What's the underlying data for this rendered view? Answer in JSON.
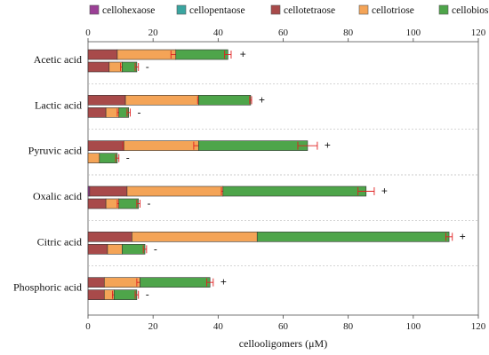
{
  "chart_data": {
    "type": "bar",
    "orientation": "horizontal",
    "stacked": true,
    "xlabel": "cellooligomers (μM)",
    "xlim": [
      0,
      120
    ],
    "x_ticks": [
      0,
      20,
      40,
      60,
      80,
      100,
      120
    ],
    "x_axis_top": true,
    "grid": "dotted horizontal separators between groups",
    "legend_position": "top",
    "series": [
      {
        "name": "cellohexaose",
        "color": "#9b3f96"
      },
      {
        "name": "cellopentaose",
        "color": "#3aa5a0"
      },
      {
        "name": "cellotetraose",
        "color": "#a84a4a"
      },
      {
        "name": "cellotriose",
        "color": "#f4a457"
      },
      {
        "name": "cellobiose",
        "color": "#4ea54a"
      }
    ],
    "categories": [
      {
        "name": "Acetic acid",
        "bars": [
          {
            "sign": "+",
            "segments": [
              0,
              0,
              9,
              18,
              16
            ],
            "errors": [
              0,
              0,
              0,
              1.5,
              1
            ]
          },
          {
            "sign": "-",
            "segments": [
              0,
              0,
              6.5,
              4,
              4.5
            ],
            "errors": [
              0,
              0,
              0,
              0.5,
              0.5
            ]
          }
        ]
      },
      {
        "name": "Lactic acid",
        "bars": [
          {
            "sign": "+",
            "segments": [
              0,
              0,
              11.5,
              22.5,
              16
            ],
            "errors": [
              0,
              0,
              0,
              0.3,
              0.3
            ]
          },
          {
            "sign": "-",
            "segments": [
              0,
              0,
              5.5,
              4,
              3
            ],
            "errors": [
              0,
              0,
              0,
              0.5,
              0.5
            ]
          }
        ]
      },
      {
        "name": "Pyruvic acid",
        "bars": [
          {
            "sign": "+",
            "segments": [
              0,
              0,
              11,
              23,
              33.5
            ],
            "errors": [
              0,
              0,
              0.3,
              1.5,
              3
            ]
          },
          {
            "sign": "-",
            "segments": [
              0,
              0,
              0,
              3.5,
              5.5
            ],
            "errors": [
              0,
              0,
              0,
              0,
              0.5
            ]
          }
        ]
      },
      {
        "name": "Oxalic acid",
        "bars": [
          {
            "sign": "+",
            "segments": [
              0.5,
              0,
              11.5,
              29.5,
              44
            ],
            "errors": [
              0,
              0,
              0,
              0.5,
              2.5
            ]
          },
          {
            "sign": "-",
            "segments": [
              0,
              0,
              5.5,
              4,
              6
            ],
            "errors": [
              0,
              0,
              0,
              0.5,
              0.5
            ]
          }
        ]
      },
      {
        "name": "Citric acid",
        "bars": [
          {
            "sign": "+",
            "segments": [
              0,
              0,
              13.5,
              38.5,
              59
            ],
            "errors": [
              0,
              0,
              0,
              0,
              1
            ]
          },
          {
            "sign": "-",
            "segments": [
              0,
              0,
              6,
              4.5,
              7
            ],
            "errors": [
              0,
              0,
              0,
              0,
              0.5
            ]
          }
        ]
      },
      {
        "name": "Phosphoric acid",
        "bars": [
          {
            "sign": "+",
            "segments": [
              0,
              0,
              5,
              11,
              21.5
            ],
            "errors": [
              0,
              0,
              0,
              1,
              1
            ]
          },
          {
            "sign": "-",
            "segments": [
              0,
              0,
              5,
              3,
              7
            ],
            "errors": [
              0,
              0,
              0,
              0.5,
              0.5
            ]
          }
        ]
      }
    ]
  }
}
